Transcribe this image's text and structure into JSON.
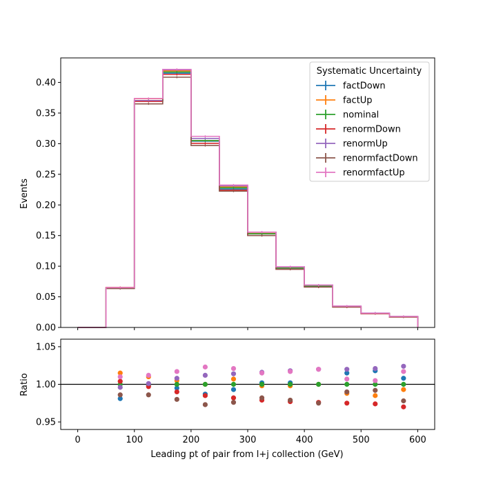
{
  "chart_data": [
    {
      "type": "line",
      "subtype": "step-histogram",
      "ylabel": "Events",
      "xlim": [
        -30,
        630
      ],
      "ylim": [
        0,
        0.44
      ],
      "yticks": [
        "0.00",
        "0.05",
        "0.10",
        "0.15",
        "0.20",
        "0.25",
        "0.30",
        "0.35",
        "0.40"
      ],
      "bin_edges": [
        0,
        50,
        100,
        150,
        200,
        250,
        300,
        350,
        400,
        450,
        500,
        550,
        600
      ],
      "legend": {
        "title": "Systematic Uncertainty",
        "placement": "top-right"
      },
      "series": [
        {
          "name": "factDown",
          "color": "#1f77b4",
          "values": [
            0.0,
            0.0645,
            0.37,
            0.415,
            0.304,
            0.226,
            0.153,
            0.097,
            0.0675,
            0.034,
            0.0232,
            0.0177
          ]
        },
        {
          "name": "factUp",
          "color": "#ff7f0e",
          "values": [
            0.0,
            0.0654,
            0.3735,
            0.419,
            0.305,
            0.2295,
            0.1535,
            0.0975,
            0.068,
            0.034,
            0.0227,
            0.0175
          ]
        },
        {
          "name": "nominal",
          "color": "#2ca02c",
          "values": [
            0.0,
            0.0645,
            0.37,
            0.417,
            0.305,
            0.228,
            0.153,
            0.0972,
            0.0678,
            0.0341,
            0.023,
            0.0176
          ]
        },
        {
          "name": "renormDown",
          "color": "#d62728",
          "values": [
            0.0,
            0.0648,
            0.369,
            0.413,
            0.3005,
            0.224,
            0.15,
            0.095,
            0.066,
            0.0332,
            0.0224,
            0.017
          ]
        },
        {
          "name": "renormUp",
          "color": "#9467bd",
          "values": [
            0.0,
            0.0643,
            0.3705,
            0.4205,
            0.3085,
            0.2312,
            0.1555,
            0.099,
            0.0692,
            0.0348,
            0.0235,
            0.018
          ]
        },
        {
          "name": "renormfactDown",
          "color": "#8c564b",
          "values": [
            0.0,
            0.0635,
            0.365,
            0.4085,
            0.297,
            0.2225,
            0.15,
            0.095,
            0.066,
            0.0336,
            0.0228,
            0.0172
          ]
        },
        {
          "name": "renormfactUp",
          "color": "#e377c2",
          "values": [
            0.0,
            0.0652,
            0.3738,
            0.4213,
            0.312,
            0.2325,
            0.1557,
            0.0988,
            0.0691,
            0.0348,
            0.0232,
            0.018
          ]
        }
      ]
    },
    {
      "type": "scatter",
      "xlabel": "Leading pt of pair from l+j collection (GeV)",
      "ylabel": "Ratio",
      "xlim": [
        -30,
        630
      ],
      "ylim": [
        0.94,
        1.06
      ],
      "yticks": [
        "0.95",
        "1.00",
        "1.05"
      ],
      "xticks": [
        "0",
        "100",
        "200",
        "300",
        "400",
        "500",
        "600"
      ],
      "reference_line": 1.0,
      "x": [
        75,
        125,
        175,
        225,
        275,
        325,
        375,
        425,
        475,
        525,
        575
      ],
      "series": [
        {
          "name": "factDown",
          "color": "#1f77b4",
          "values": [
            0.981,
            0.999,
            0.995,
            0.987,
            0.993,
            1.002,
            1.002,
            1.0,
            1.015,
            1.018,
            1.008
          ]
        },
        {
          "name": "factUp",
          "color": "#ff7f0e",
          "values": [
            1.015,
            1.01,
            1.005,
            1.0,
            1.007,
            0.998,
            0.998,
            1.0,
            0.988,
            0.985,
            0.993
          ]
        },
        {
          "name": "nominal",
          "color": "#2ca02c",
          "values": [
            1.0,
            1.0,
            1.0,
            1.0,
            1.0,
            1.0,
            1.0,
            1.0,
            1.0,
            1.0,
            1.0
          ]
        },
        {
          "name": "renormDown",
          "color": "#d62728",
          "values": [
            1.004,
            0.997,
            0.99,
            0.985,
            0.982,
            0.979,
            0.977,
            0.976,
            0.975,
            0.974,
            0.97
          ]
        },
        {
          "name": "renormUp",
          "color": "#9467bd",
          "values": [
            0.996,
            1.001,
            1.008,
            1.012,
            1.014,
            1.016,
            1.018,
            1.02,
            1.02,
            1.021,
            1.024
          ]
        },
        {
          "name": "renormfactDown",
          "color": "#8c564b",
          "values": [
            0.986,
            0.986,
            0.98,
            0.973,
            0.976,
            0.982,
            0.979,
            0.975,
            0.99,
            0.992,
            0.978
          ]
        },
        {
          "name": "renormfactUp",
          "color": "#e377c2",
          "values": [
            1.01,
            1.012,
            1.017,
            1.023,
            1.021,
            1.015,
            1.017,
            1.02,
            1.007,
            1.005,
            1.017
          ]
        }
      ]
    }
  ]
}
